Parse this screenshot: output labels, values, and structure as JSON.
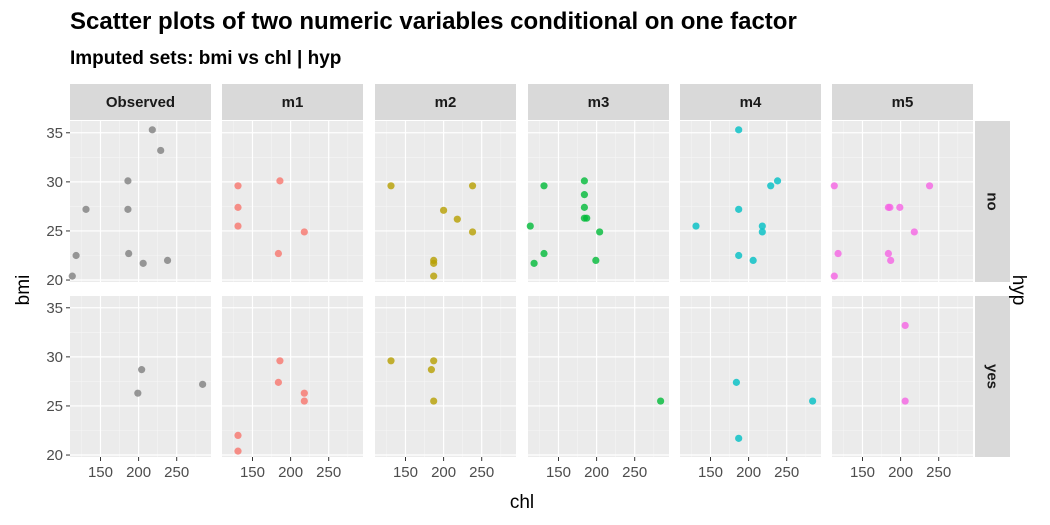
{
  "chart_data": {
    "type": "scatter",
    "title": "Scatter plots of two numeric variables conditional on one factor",
    "subtitle": "Imputed sets:  bmi vs chl | hyp",
    "xlabel": "chl",
    "ylabel": "bmi",
    "facet_label": "hyp",
    "columns": [
      "Observed",
      "m1",
      "m2",
      "m3",
      "m4",
      "m5"
    ],
    "rows": [
      "no",
      "yes"
    ],
    "xlim": [
      110,
      295
    ],
    "ylim": [
      19.8,
      36.2
    ],
    "xticks": [
      150,
      200,
      250
    ],
    "yticks": [
      20,
      25,
      30,
      35
    ],
    "grid": true,
    "colors": {
      "Observed": "#808080",
      "m1": "#F8766D",
      "m2": "#B79F00",
      "m3": "#00BA38",
      "m4": "#00BFC4",
      "m5": "#F564E3"
    },
    "panels": [
      {
        "column": "Observed",
        "row": "no",
        "points": [
          [
            113,
            20.4
          ],
          [
            118,
            22.5
          ],
          [
            131,
            27.2
          ],
          [
            186,
            30.1
          ],
          [
            186,
            27.2
          ],
          [
            187,
            22.7
          ],
          [
            206,
            21.7
          ],
          [
            218,
            35.3
          ],
          [
            229,
            33.2
          ],
          [
            238,
            22.0
          ]
        ]
      },
      {
        "column": "m1",
        "row": "no",
        "points": [
          [
            131,
            29.6
          ],
          [
            131,
            27.4
          ],
          [
            131,
            25.5
          ],
          [
            186,
            30.1
          ],
          [
            184,
            22.7
          ],
          [
            218,
            24.9
          ]
        ]
      },
      {
        "column": "m2",
        "row": "no",
        "points": [
          [
            131,
            29.6
          ],
          [
            187,
            22.0
          ],
          [
            187,
            21.7
          ],
          [
            187,
            20.4
          ],
          [
            200,
            27.1
          ],
          [
            218,
            26.2
          ],
          [
            238,
            29.6
          ],
          [
            238,
            24.9
          ]
        ]
      },
      {
        "column": "m3",
        "row": "no",
        "points": [
          [
            113,
            25.5
          ],
          [
            118,
            21.7
          ],
          [
            131,
            29.6
          ],
          [
            131,
            22.7
          ],
          [
            184,
            30.1
          ],
          [
            184,
            28.7
          ],
          [
            184,
            27.4
          ],
          [
            184,
            26.3
          ],
          [
            187,
            26.3
          ],
          [
            199,
            22.0
          ],
          [
            204,
            24.9
          ]
        ]
      },
      {
        "column": "m4",
        "row": "no",
        "points": [
          [
            131,
            25.5
          ],
          [
            187,
            35.3
          ],
          [
            187,
            27.2
          ],
          [
            187,
            22.5
          ],
          [
            206,
            22.0
          ],
          [
            218,
            25.5
          ],
          [
            218,
            24.9
          ],
          [
            229,
            29.6
          ],
          [
            238,
            30.1
          ]
        ]
      },
      {
        "column": "m5",
        "row": "no",
        "points": [
          [
            113,
            29.6
          ],
          [
            118,
            22.7
          ],
          [
            113,
            20.4
          ],
          [
            184,
            27.4
          ],
          [
            186,
            27.4
          ],
          [
            184,
            22.7
          ],
          [
            187,
            22.0
          ],
          [
            199,
            27.4
          ],
          [
            218,
            24.9
          ],
          [
            238,
            29.6
          ]
        ]
      },
      {
        "column": "Observed",
        "row": "yes",
        "points": [
          [
            204,
            28.7
          ],
          [
            199,
            26.3
          ],
          [
            284,
            27.2
          ]
        ]
      },
      {
        "column": "m1",
        "row": "yes",
        "points": [
          [
            131,
            22.0
          ],
          [
            131,
            20.4
          ],
          [
            186,
            29.6
          ],
          [
            184,
            27.4
          ],
          [
            218,
            26.3
          ],
          [
            218,
            25.5
          ]
        ]
      },
      {
        "column": "m2",
        "row": "yes",
        "points": [
          [
            131,
            29.6
          ],
          [
            187,
            29.6
          ],
          [
            184,
            28.7
          ],
          [
            187,
            25.5
          ]
        ]
      },
      {
        "column": "m3",
        "row": "yes",
        "points": [
          [
            284,
            25.5
          ]
        ]
      },
      {
        "column": "m4",
        "row": "yes",
        "points": [
          [
            184,
            27.4
          ],
          [
            187,
            21.7
          ],
          [
            284,
            25.5
          ]
        ]
      },
      {
        "column": "m5",
        "row": "yes",
        "points": [
          [
            206,
            33.2
          ],
          [
            206,
            25.5
          ]
        ]
      }
    ]
  }
}
